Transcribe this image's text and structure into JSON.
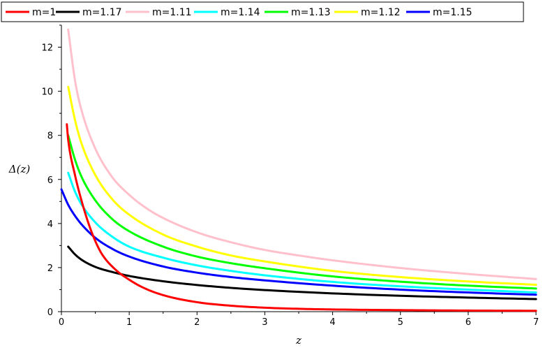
{
  "chart_data": {
    "type": "line",
    "xlabel": "z",
    "ylabel": "Δ(z)",
    "xlim": [
      0,
      7
    ],
    "ylim": [
      0,
      13
    ],
    "x_ticks": [
      "0",
      "1",
      "2",
      "3",
      "4",
      "5",
      "6",
      "7"
    ],
    "y_ticks": [
      "0",
      "2",
      "4",
      "6",
      "8",
      "10",
      "12"
    ],
    "grid": false,
    "legend_position": "top",
    "series": [
      {
        "name": "m=1",
        "color": "#ff0000",
        "x": [
          0.08,
          0.1,
          0.2,
          0.3,
          0.4,
          0.5,
          0.6,
          0.8,
          1.0,
          1.2,
          1.5,
          2.0,
          2.5,
          3.0,
          3.5,
          4.0,
          5.0,
          6.0,
          7.0
        ],
        "y": [
          8.5,
          7.8,
          6.2,
          5.0,
          4.0,
          3.2,
          2.6,
          1.9,
          1.45,
          1.1,
          0.75,
          0.43,
          0.27,
          0.18,
          0.13,
          0.1,
          0.07,
          0.05,
          0.04
        ]
      },
      {
        "name": "m=1.17",
        "color": "#000000",
        "x": [
          0.1,
          0.2,
          0.3,
          0.5,
          0.75,
          1.0,
          1.5,
          2.0,
          2.5,
          3.0,
          4.0,
          5.0,
          6.0,
          7.0
        ],
        "y": [
          2.95,
          2.6,
          2.35,
          2.03,
          1.8,
          1.62,
          1.38,
          1.21,
          1.08,
          0.98,
          0.83,
          0.72,
          0.64,
          0.57
        ]
      },
      {
        "name": "m=1.11",
        "color": "#ffc0cb",
        "x": [
          0.1,
          0.2,
          0.3,
          0.5,
          0.75,
          1.0,
          1.25,
          1.5,
          2.0,
          2.5,
          3.0,
          3.5,
          4.0,
          5.0,
          6.0,
          7.0
        ],
        "y": [
          12.8,
          10.5,
          9.1,
          7.4,
          6.1,
          5.3,
          4.7,
          4.25,
          3.6,
          3.15,
          2.8,
          2.55,
          2.33,
          1.98,
          1.71,
          1.48
        ]
      },
      {
        "name": "m=1.14",
        "color": "#00ffff",
        "x": [
          0.1,
          0.2,
          0.3,
          0.5,
          0.75,
          1.0,
          1.5,
          2.0,
          2.5,
          3.0,
          4.0,
          5.0,
          6.0,
          7.0
        ],
        "y": [
          6.3,
          5.45,
          4.85,
          4.05,
          3.4,
          2.95,
          2.45,
          2.1,
          1.85,
          1.65,
          1.35,
          1.15,
          1.0,
          0.87
        ]
      },
      {
        "name": "m=1.13",
        "color": "#00ff00",
        "x": [
          0.1,
          0.2,
          0.3,
          0.5,
          0.75,
          1.0,
          1.5,
          2.0,
          2.5,
          3.0,
          4.0,
          5.0,
          6.0,
          7.0
        ],
        "y": [
          8.0,
          6.9,
          6.1,
          5.05,
          4.2,
          3.65,
          2.95,
          2.5,
          2.2,
          1.97,
          1.6,
          1.36,
          1.18,
          1.05
        ]
      },
      {
        "name": "m=1.12",
        "color": "#ffff00",
        "x": [
          0.1,
          0.2,
          0.3,
          0.5,
          0.75,
          1.0,
          1.5,
          2.0,
          2.5,
          3.0,
          4.0,
          5.0,
          6.0,
          7.0
        ],
        "y": [
          10.2,
          8.7,
          7.6,
          6.2,
          5.1,
          4.4,
          3.5,
          2.95,
          2.55,
          2.28,
          1.85,
          1.57,
          1.37,
          1.22
        ]
      },
      {
        "name": "m=1.15",
        "color": "#0000ff",
        "x": [
          0.0,
          0.1,
          0.2,
          0.3,
          0.5,
          0.75,
          1.0,
          1.5,
          2.0,
          2.5,
          3.0,
          4.0,
          5.0,
          6.0,
          7.0
        ],
        "y": [
          5.55,
          4.85,
          4.35,
          3.95,
          3.35,
          2.85,
          2.5,
          2.05,
          1.77,
          1.57,
          1.42,
          1.18,
          1.0,
          0.87,
          0.77
        ]
      }
    ]
  }
}
